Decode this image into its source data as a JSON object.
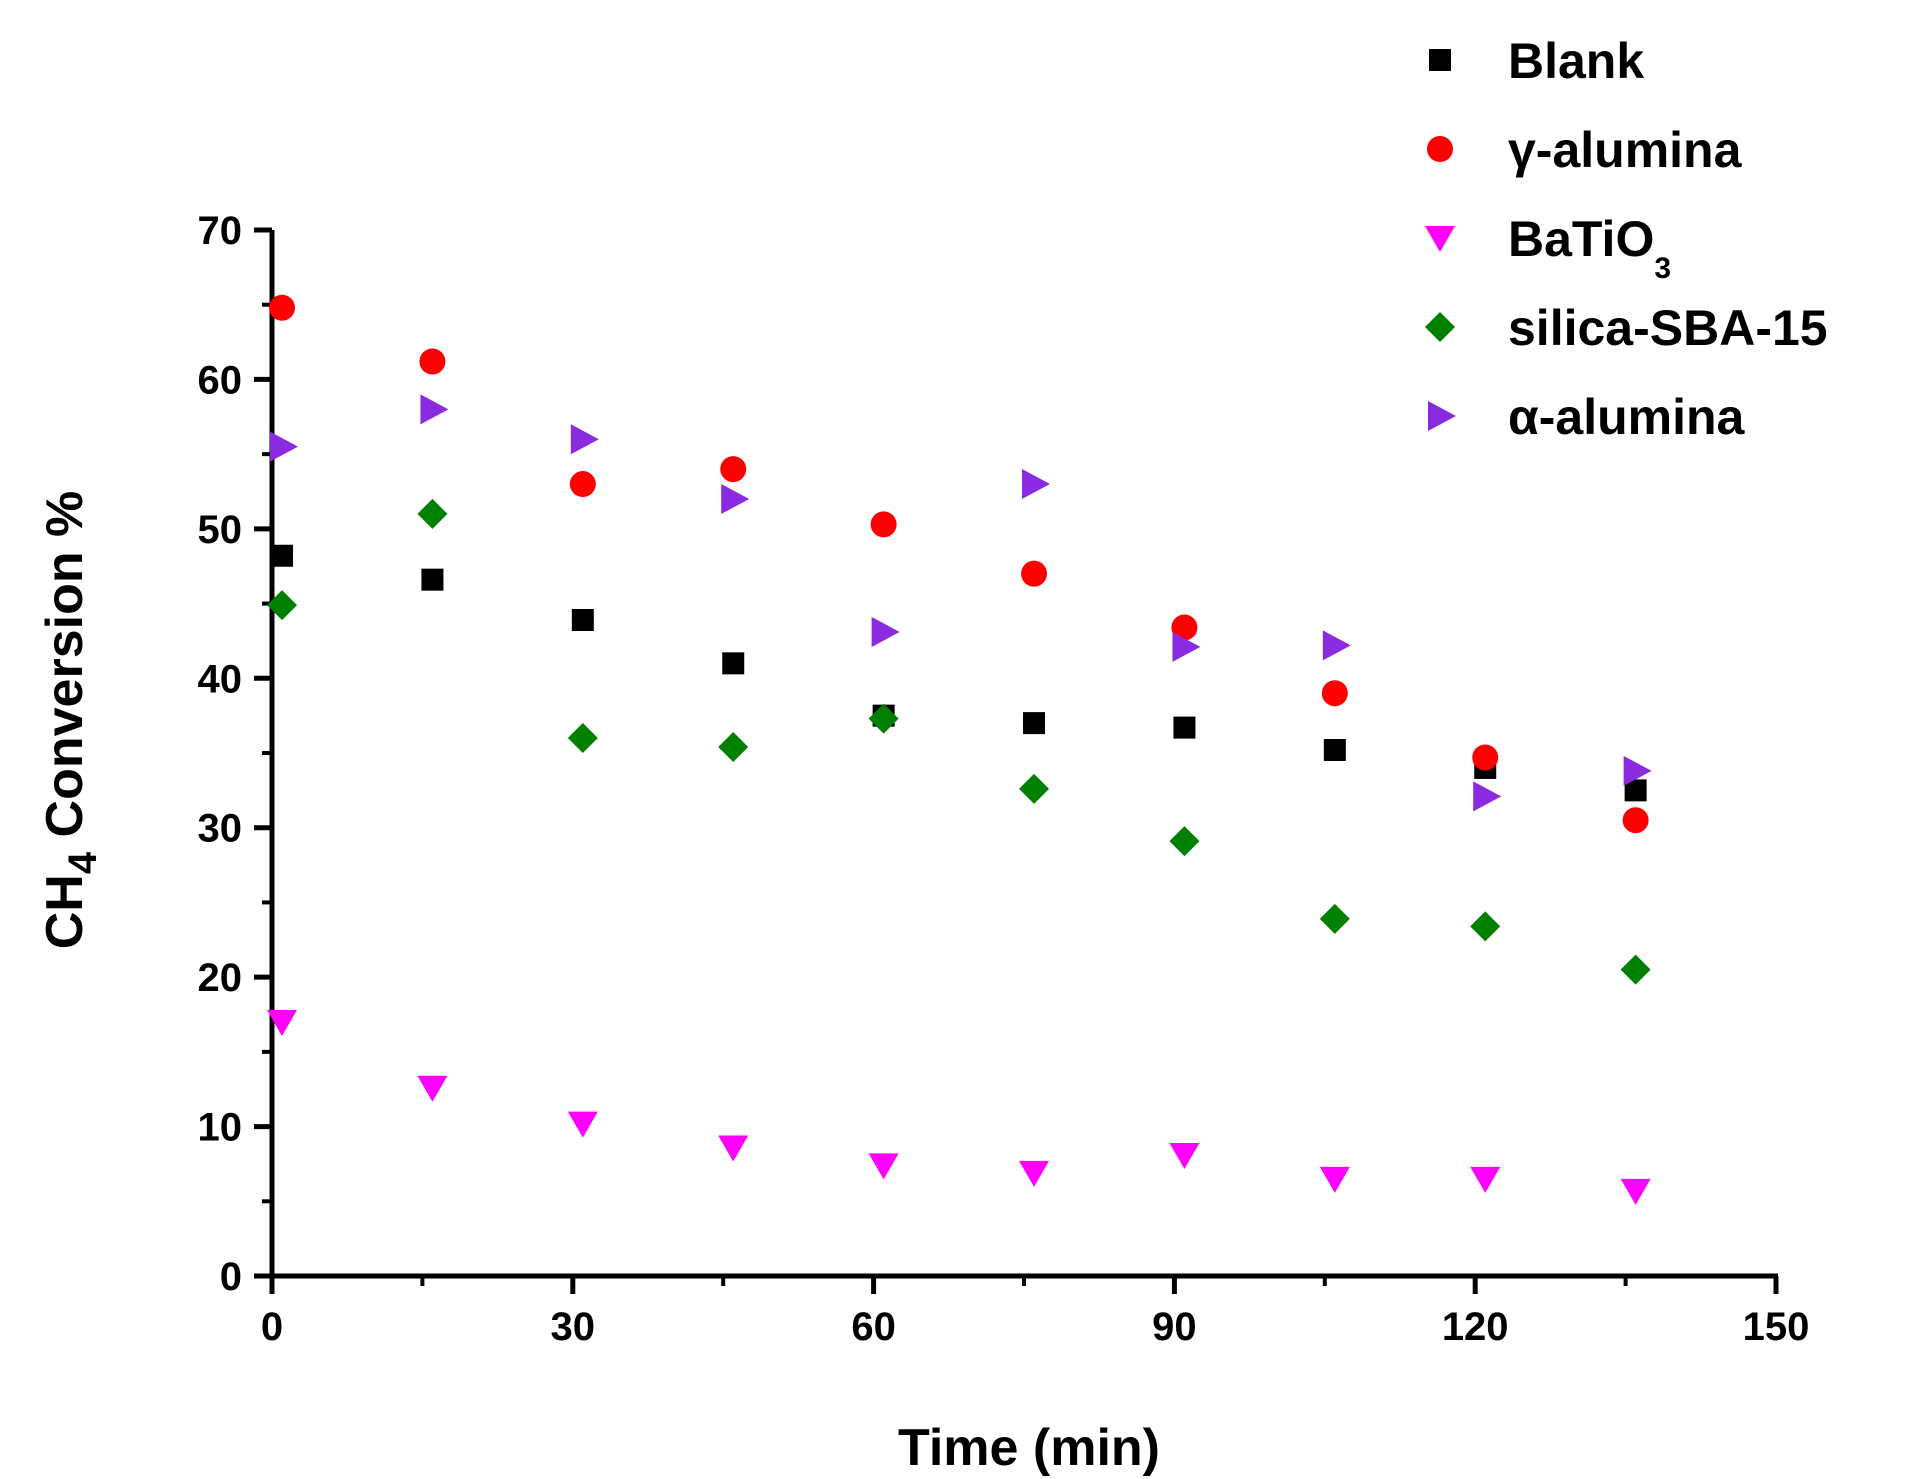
{
  "chart_data": {
    "type": "scatter",
    "title": "",
    "xlabel": "Time (min)",
    "ylabel": {
      "pre": "CH",
      "sub": "4",
      "post": " Conversion %"
    },
    "xlim": [
      0,
      150
    ],
    "ylim": [
      0,
      70
    ],
    "xticks": [
      0,
      30,
      60,
      90,
      120,
      150
    ],
    "yticks": [
      0,
      10,
      20,
      30,
      40,
      50,
      60,
      70
    ],
    "x": [
      1,
      16,
      31,
      46,
      61,
      76,
      91,
      106,
      121,
      136
    ],
    "grid": false,
    "legend_position": "top-right",
    "series": [
      {
        "name": "Blank",
        "name_sub": "",
        "marker": "square",
        "color": "#000000",
        "values": [
          48.2,
          46.6,
          43.9,
          41.0,
          37.5,
          37.0,
          36.7,
          35.2,
          34.0,
          32.5
        ]
      },
      {
        "name": "γ-alumina",
        "name_sub": "",
        "marker": "circle",
        "color": "#ff0000",
        "values": [
          64.8,
          61.2,
          53.0,
          54.0,
          50.3,
          47.0,
          43.4,
          39.0,
          34.7,
          30.5
        ]
      },
      {
        "name": "BaTiO",
        "name_sub": "3",
        "marker": "triangle-down",
        "color": "#ff00ff",
        "values": [
          17.0,
          12.6,
          10.2,
          8.6,
          7.4,
          6.9,
          8.1,
          6.5,
          6.5,
          5.7
        ]
      },
      {
        "name": "silica-SBA-15",
        "name_sub": "",
        "marker": "diamond",
        "color": "#008000",
        "values": [
          44.9,
          51.0,
          36.0,
          35.4,
          37.3,
          32.6,
          29.1,
          23.9,
          23.4,
          20.5
        ]
      },
      {
        "name": "α-alumina",
        "name_sub": "",
        "marker": "triangle-right",
        "color": "#8a2be2",
        "values": [
          55.5,
          58.0,
          56.0,
          52.0,
          43.1,
          53.0,
          42.1,
          42.2,
          32.1,
          33.8
        ]
      }
    ]
  }
}
